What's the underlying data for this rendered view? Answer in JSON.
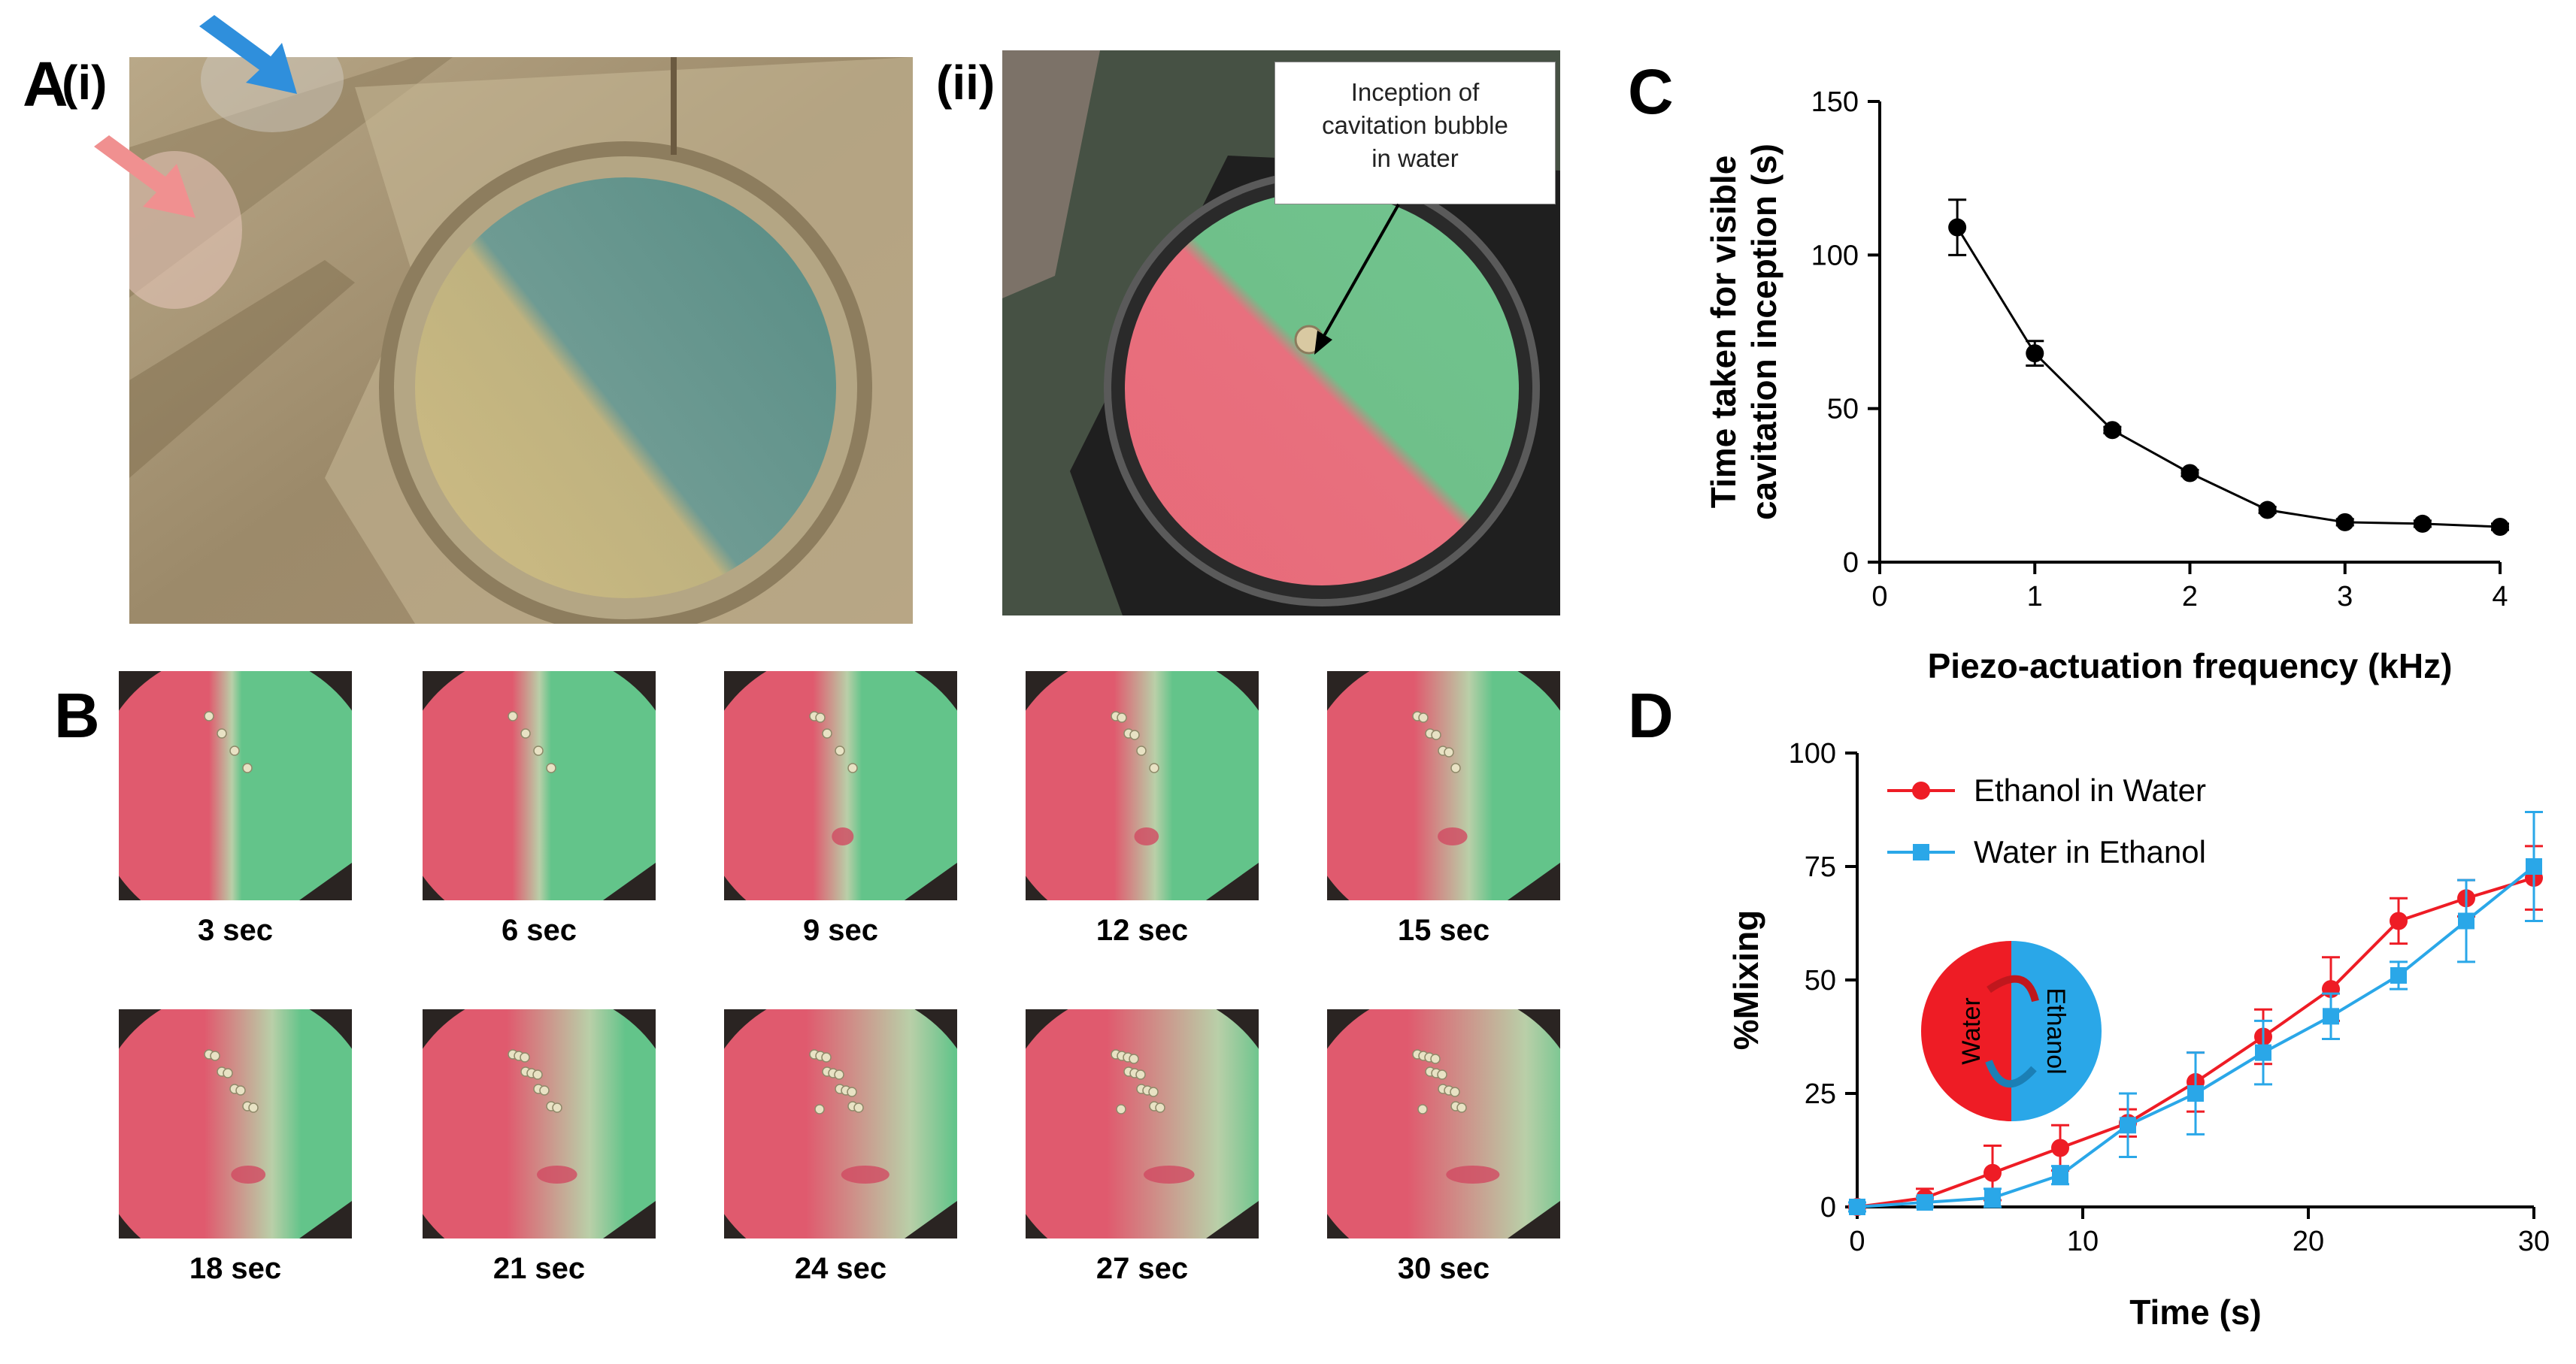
{
  "panels": {
    "A": "A",
    "A_i": "(i)",
    "A_ii": "(ii)",
    "B": "B",
    "C": "C",
    "D": "D"
  },
  "annotation": {
    "inception_lines": [
      "Inception of",
      "cavitation bubble",
      "in water"
    ]
  },
  "photo_colors": {
    "water": "#e05a6e",
    "ethanol": "#63c48a",
    "arrow_blue": "#2f8fdc",
    "arrow_pink": "#f09090"
  },
  "frames": [
    {
      "label": "3 sec",
      "mix": 0.05
    },
    {
      "label": "6 sec",
      "mix": 0.08
    },
    {
      "label": "9 sec",
      "mix": 0.13
    },
    {
      "label": "12 sec",
      "mix": 0.18
    },
    {
      "label": "15 sec",
      "mix": 0.28
    },
    {
      "label": "18 sec",
      "mix": 0.37
    },
    {
      "label": "21 sec",
      "mix": 0.48
    },
    {
      "label": "24 sec",
      "mix": 0.63
    },
    {
      "label": "27 sec",
      "mix": 0.68
    },
    {
      "label": "30 sec",
      "mix": 0.73
    }
  ],
  "chart_data": [
    {
      "id": "C",
      "type": "line",
      "xlabel": "Piezo-actuation frequency (kHz)",
      "ylabel_lines": [
        "Time taken for visible",
        "cavitation inception (s)"
      ],
      "xlim": [
        0,
        4
      ],
      "ylim": [
        0,
        150
      ],
      "xticks": [
        0,
        1,
        2,
        3,
        4
      ],
      "yticks": [
        0,
        50,
        100,
        150
      ],
      "series": [
        {
          "x": [
            0.5,
            1.0,
            1.5,
            2.0,
            2.5,
            3.0,
            3.5,
            4.0
          ],
          "y": [
            109,
            68,
            43,
            29,
            17,
            13,
            12.5,
            11.5
          ],
          "error": [
            9,
            4,
            1,
            1,
            1,
            1,
            1,
            1
          ],
          "color": "#000000",
          "marker": "circle"
        }
      ]
    },
    {
      "id": "D",
      "type": "line",
      "xlabel": "Time (s)",
      "ylabel": "%Mixing",
      "xlim": [
        0,
        30
      ],
      "ylim": [
        0,
        100
      ],
      "xticks": [
        0,
        10,
        20,
        30
      ],
      "yticks": [
        0,
        25,
        50,
        75,
        100
      ],
      "legend_position": "top-left",
      "inset_labels": {
        "left": "Water",
        "right": "Ethanol"
      },
      "series": [
        {
          "name": "Ethanol in Water",
          "color": "#ee1c25",
          "marker": "circle",
          "x": [
            0,
            3,
            6,
            9,
            12,
            15,
            18,
            21,
            24,
            27,
            30
          ],
          "y": [
            0,
            2,
            7.5,
            13,
            18.5,
            27.5,
            37.5,
            48,
            63,
            68,
            72.5
          ],
          "error": [
            1,
            2,
            6,
            5,
            3,
            6.5,
            6,
            7,
            5,
            4,
            7
          ]
        },
        {
          "name": "Water in Ethanol",
          "color": "#2aa7e8",
          "marker": "square",
          "x": [
            0,
            3,
            6,
            9,
            12,
            15,
            18,
            21,
            24,
            27,
            30
          ],
          "y": [
            0,
            1,
            2,
            7,
            18,
            25,
            34,
            42,
            51,
            63,
            75
          ],
          "error": [
            1,
            1,
            2,
            2,
            7,
            9,
            7,
            5,
            3,
            9,
            12
          ]
        }
      ]
    }
  ]
}
